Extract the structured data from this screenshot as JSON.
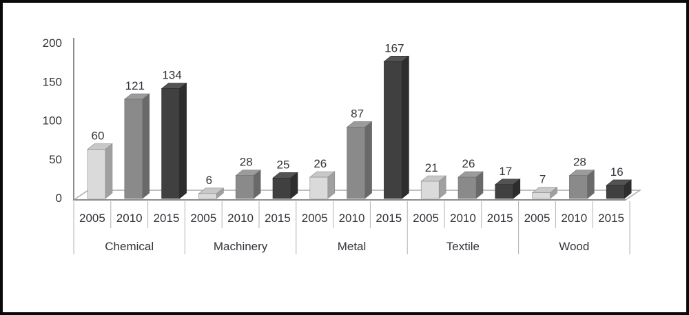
{
  "figure": {
    "background_color": "#ffffff",
    "border_color": "#0a0a0a",
    "title": ""
  },
  "chart_data": {
    "type": "bar",
    "projection": "3d",
    "title": "",
    "xlabel": "",
    "ylabel": "",
    "categories": [
      "Chemical",
      "Machinery",
      "Metal",
      "Textile",
      "Wood"
    ],
    "x_sub_labels": [
      "2005",
      "2010",
      "2015"
    ],
    "series": [
      {
        "name": "2005",
        "values": [
          60,
          6,
          26,
          21,
          7
        ]
      },
      {
        "name": "2010",
        "values": [
          121,
          28,
          87,
          26,
          28
        ]
      },
      {
        "name": "2015",
        "values": [
          134,
          25,
          167,
          17,
          16
        ]
      }
    ],
    "value_labels_shown": true,
    "y_ticks": [
      "0",
      "50",
      "100",
      "150",
      "200"
    ],
    "y_tick_values": [
      0,
      50,
      100,
      150,
      200
    ],
    "ylim": [
      0,
      200
    ],
    "grid": "off",
    "legend": "none",
    "colors": {
      "series_2005": {
        "front": "#dadada",
        "top": "#c8c8c8",
        "side": "#a0a0a0",
        "edge": "#8a8a8a"
      },
      "series_2010": {
        "front": "#8a8a8a",
        "top": "#9b9b9b",
        "side": "#696969",
        "edge": "#6f6f6f"
      },
      "series_2015": {
        "front": "#404040",
        "top": "#535353",
        "side": "#2d2d2d",
        "edge": "#262626"
      },
      "axis_line": "#8c8c8c",
      "floor_line": "#a8a8a8",
      "tick_line": "#b0b0b0",
      "text": "#33333a"
    }
  }
}
